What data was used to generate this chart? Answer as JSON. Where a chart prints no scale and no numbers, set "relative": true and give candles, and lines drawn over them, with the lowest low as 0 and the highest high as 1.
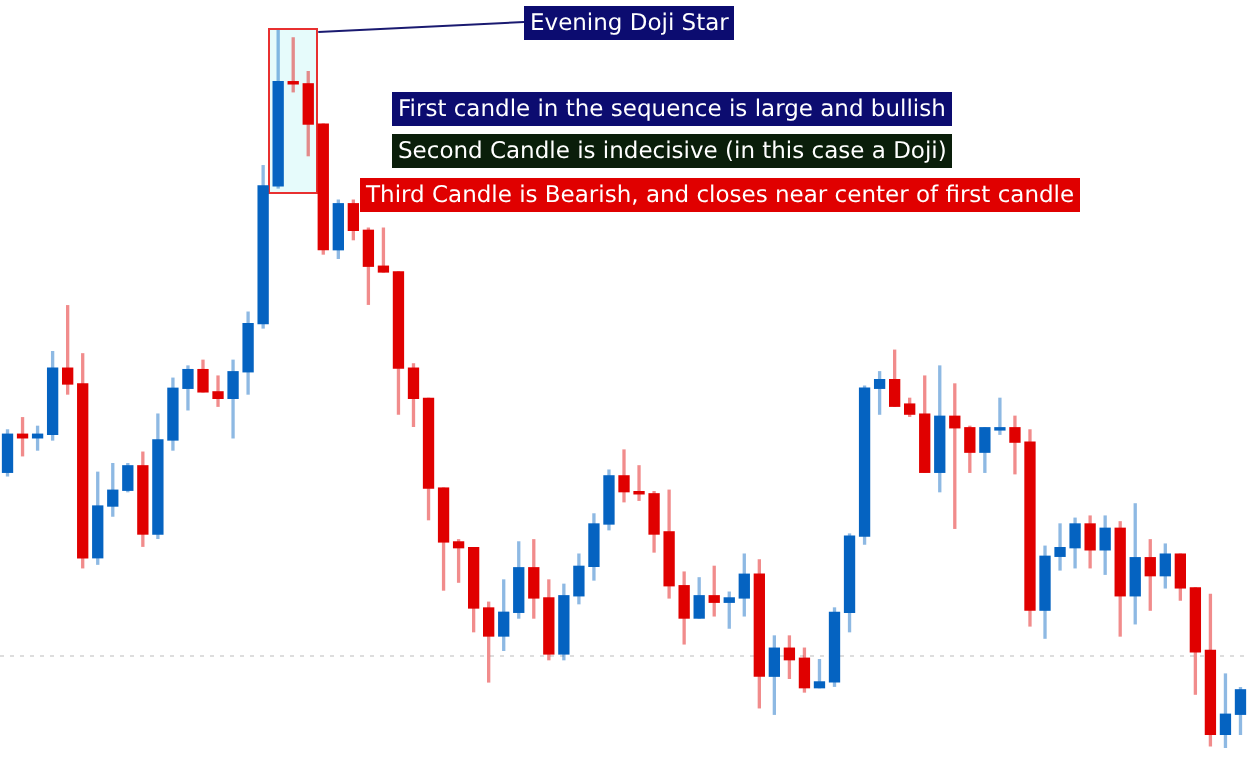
{
  "chart_data": {
    "type": "candlestick",
    "relative": true,
    "categories": [
      null,
      null,
      null,
      null,
      null,
      null,
      null,
      null,
      null,
      null,
      null,
      null,
      null,
      null,
      null,
      null,
      null,
      null,
      null,
      null,
      null,
      null,
      null,
      null,
      null,
      null,
      null,
      null,
      null,
      null,
      null,
      null,
      null,
      null,
      null,
      null,
      null,
      null,
      null,
      null,
      null,
      null,
      null,
      null,
      null,
      null,
      null,
      null,
      null,
      null,
      null,
      null,
      null,
      null,
      null,
      null,
      null,
      null,
      null,
      null,
      null,
      null,
      null,
      null,
      null,
      null,
      null,
      null,
      null,
      null,
      null,
      null,
      null,
      null,
      null,
      null,
      null,
      null,
      null,
      null,
      null,
      null,
      null
    ],
    "ohlc": [
      [
        0.384,
        0.443,
        0.379,
        0.437
      ],
      [
        0.437,
        0.46,
        0.407,
        0.432
      ],
      [
        0.432,
        0.448,
        0.415,
        0.437
      ],
      [
        0.437,
        0.552,
        0.429,
        0.529
      ],
      [
        0.529,
        0.616,
        0.493,
        0.507
      ],
      [
        0.507,
        0.549,
        0.251,
        0.265
      ],
      [
        0.265,
        0.384,
        0.256,
        0.337
      ],
      [
        0.337,
        0.396,
        0.323,
        0.359
      ],
      [
        0.359,
        0.396,
        0.357,
        0.393
      ],
      [
        0.393,
        0.412,
        0.281,
        0.298
      ],
      [
        0.298,
        0.465,
        0.292,
        0.429
      ],
      [
        0.429,
        0.515,
        0.415,
        0.501
      ],
      [
        0.501,
        0.532,
        0.471,
        0.527
      ],
      [
        0.527,
        0.54,
        0.496,
        0.496
      ],
      [
        0.496,
        0.518,
        0.476,
        0.487
      ],
      [
        0.487,
        0.54,
        0.432,
        0.524
      ],
      [
        0.524,
        0.607,
        0.493,
        0.591
      ],
      [
        0.591,
        0.811,
        0.585,
        0.783
      ],
      [
        0.783,
        1,
        0.78,
        0.928
      ],
      [
        0.928,
        0.989,
        0.914,
        0.925
      ],
      [
        0.925,
        0.942,
        0.825,
        0.869
      ],
      [
        0.869,
        0.869,
        0.688,
        0.694
      ],
      [
        0.694,
        0.763,
        0.682,
        0.758
      ],
      [
        0.758,
        0.763,
        0.708,
        0.721
      ],
      [
        0.721,
        0.724,
        0.618,
        0.671
      ],
      [
        0.671,
        0.724,
        0.663,
        0.663
      ],
      [
        0.663,
        0.663,
        0.465,
        0.529
      ],
      [
        0.529,
        0.535,
        0.448,
        0.487
      ],
      [
        0.487,
        0.487,
        0.318,
        0.362
      ],
      [
        0.362,
        0.362,
        0.22,
        0.287
      ],
      [
        0.287,
        0.29,
        0.231,
        0.279
      ],
      [
        0.279,
        0.279,
        0.162,
        0.195
      ],
      [
        0.195,
        0.203,
        0.092,
        0.156
      ],
      [
        0.156,
        0.234,
        0.136,
        0.189
      ],
      [
        0.189,
        0.287,
        0.181,
        0.251
      ],
      [
        0.251,
        0.29,
        0.181,
        0.209
      ],
      [
        0.209,
        0.234,
        0.123,
        0.131
      ],
      [
        0.131,
        0.228,
        0.123,
        0.212
      ],
      [
        0.212,
        0.27,
        0.201,
        0.253
      ],
      [
        0.253,
        0.326,
        0.234,
        0.312
      ],
      [
        0.312,
        0.387,
        0.304,
        0.379
      ],
      [
        0.379,
        0.415,
        0.343,
        0.357
      ],
      [
        0.357,
        0.393,
        0.345,
        0.354
      ],
      [
        0.354,
        0.357,
        0.273,
        0.298
      ],
      [
        0.301,
        0.359,
        0.209,
        0.226
      ],
      [
        0.226,
        0.245,
        0.145,
        0.181
      ],
      [
        0.181,
        0.237,
        0.181,
        0.212
      ],
      [
        0.212,
        0.253,
        0.184,
        0.203
      ],
      [
        0.203,
        0.217,
        0.167,
        0.209
      ],
      [
        0.209,
        0.27,
        0.184,
        0.242
      ],
      [
        0.242,
        0.262,
        0.056,
        0.1
      ],
      [
        0.1,
        0.156,
        0.047,
        0.139
      ],
      [
        0.139,
        0.156,
        0.097,
        0.123
      ],
      [
        0.125,
        0.139,
        0.078,
        0.084
      ],
      [
        0.084,
        0.123,
        0.084,
        0.092
      ],
      [
        0.092,
        0.195,
        0.086,
        0.189
      ],
      [
        0.189,
        0.298,
        0.162,
        0.295
      ],
      [
        0.295,
        0.504,
        0.284,
        0.501
      ],
      [
        0.501,
        0.524,
        0.465,
        0.513
      ],
      [
        0.513,
        0.554,
        0.476,
        0.476
      ],
      [
        0.479,
        0.487,
        0.462,
        0.465
      ],
      [
        0.465,
        0.518,
        0.384,
        0.384
      ],
      [
        0.384,
        0.532,
        0.357,
        0.462
      ],
      [
        0.462,
        0.507,
        0.306,
        0.446
      ],
      [
        0.446,
        0.448,
        0.384,
        0.412
      ],
      [
        0.412,
        0.446,
        0.384,
        0.446
      ],
      [
        0.443,
        0.487,
        0.437,
        0.446
      ],
      [
        0.446,
        0.462,
        0.382,
        0.426
      ],
      [
        0.426,
        0.443,
        0.17,
        0.192
      ],
      [
        0.192,
        0.281,
        0.153,
        0.267
      ],
      [
        0.267,
        0.312,
        0.248,
        0.279
      ],
      [
        0.279,
        0.32,
        0.251,
        0.312
      ],
      [
        0.312,
        0.323,
        0.251,
        0.276
      ],
      [
        0.276,
        0.323,
        0.242,
        0.306
      ],
      [
        0.306,
        0.315,
        0.156,
        0.212
      ],
      [
        0.212,
        0.34,
        0.173,
        0.265
      ],
      [
        0.265,
        0.29,
        0.192,
        0.24
      ],
      [
        0.24,
        0.284,
        0.223,
        0.27
      ],
      [
        0.27,
        0.27,
        0.206,
        0.223
      ],
      [
        0.223,
        0.223,
        0.075,
        0.134
      ],
      [
        0.136,
        0.214,
        0.003,
        0.019
      ],
      [
        0.019,
        0.103,
        0,
        0.047
      ],
      [
        0.047,
        0.084,
        0.019,
        0.081
      ]
    ],
    "colors": [
      "#0563c1",
      "#e00000",
      "#0563c1",
      "#0563c1",
      "#e00000",
      "#e00000",
      "#0563c1",
      "#0563c1",
      "#0563c1",
      "#e00000",
      "#0563c1",
      "#0563c1",
      "#0563c1",
      "#e00000",
      "#e00000",
      "#0563c1",
      "#0563c1",
      "#0563c1",
      "#0563c1",
      "#e00000",
      "#e00000",
      "#e00000",
      "#0563c1",
      "#e00000",
      "#e00000",
      "#e00000",
      "#e00000",
      "#e00000",
      "#e00000",
      "#e00000",
      "#e00000",
      "#e00000",
      "#e00000",
      "#0563c1",
      "#0563c1",
      "#e00000",
      "#e00000",
      "#0563c1",
      "#0563c1",
      "#0563c1",
      "#0563c1",
      "#e00000",
      "#e00000",
      "#e00000",
      "#e00000",
      "#e00000",
      "#0563c1",
      "#e00000",
      "#0563c1",
      "#0563c1",
      "#e00000",
      "#0563c1",
      "#e00000",
      "#e00000",
      "#0563c1",
      "#0563c1",
      "#0563c1",
      "#0563c1",
      "#0563c1",
      "#e00000",
      "#e00000",
      "#e00000",
      "#0563c1",
      "#e00000",
      "#e00000",
      "#0563c1",
      "#0563c1",
      "#e00000",
      "#e00000",
      "#0563c1",
      "#0563c1",
      "#0563c1",
      "#e00000",
      "#0563c1",
      "#e00000",
      "#0563c1",
      "#e00000",
      "#0563c1",
      "#e00000",
      "#e00000",
      "#e00000",
      "#0563c1",
      "#0563c1"
    ],
    "ref_lines": [
      {
        "axis": "y",
        "value": 0.128,
        "color": "#dddddd",
        "line_style": "dotted"
      }
    ],
    "annotations": [
      "Evening Doji Star",
      "First candle in the sequence is large and bullish",
      "Second Candle is indecisive (in this case a Doji)",
      "Third Candle is Bearish, and closes near center of first candle"
    ]
  }
}
